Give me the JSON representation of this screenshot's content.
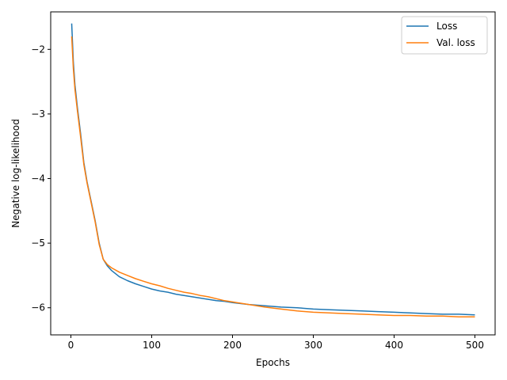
{
  "chart_data": {
    "type": "line",
    "xlabel": "Epochs",
    "ylabel": "Negative log-likelihood",
    "xlim": [
      -25,
      525
    ],
    "ylim": [
      -6.42,
      -1.42
    ],
    "xticks": [
      0,
      100,
      200,
      300,
      400,
      500
    ],
    "yticks": [
      -6,
      -5,
      -4,
      -3,
      -2
    ],
    "xtick_labels": [
      "0",
      "100",
      "200",
      "300",
      "400",
      "500"
    ],
    "ytick_labels": [
      "−6",
      "−5",
      "−4",
      "−3",
      "−2"
    ],
    "legend_position": "top-right",
    "grid": false,
    "series": [
      {
        "name": "Loss",
        "color": "#1f77b4",
        "x": [
          1,
          3,
          5,
          8,
          12,
          16,
          20,
          25,
          30,
          35,
          40,
          45,
          50,
          60,
          70,
          80,
          90,
          100,
          110,
          120,
          130,
          140,
          150,
          160,
          170,
          180,
          190,
          200,
          220,
          240,
          260,
          280,
          300,
          320,
          340,
          360,
          380,
          400,
          420,
          440,
          460,
          480,
          500
        ],
        "y": [
          -1.6,
          -2.2,
          -2.55,
          -2.9,
          -3.3,
          -3.75,
          -4.05,
          -4.35,
          -4.65,
          -5.0,
          -5.25,
          -5.35,
          -5.42,
          -5.52,
          -5.58,
          -5.63,
          -5.67,
          -5.71,
          -5.74,
          -5.76,
          -5.79,
          -5.81,
          -5.83,
          -5.85,
          -5.87,
          -5.89,
          -5.9,
          -5.92,
          -5.95,
          -5.97,
          -5.99,
          -6.0,
          -6.02,
          -6.03,
          -6.04,
          -6.05,
          -6.06,
          -6.07,
          -6.08,
          -6.09,
          -6.1,
          -6.1,
          -6.11
        ]
      },
      {
        "name": "Val. loss",
        "color": "#ff7f0e",
        "x": [
          1,
          3,
          5,
          8,
          12,
          16,
          20,
          25,
          30,
          35,
          40,
          45,
          50,
          60,
          70,
          80,
          90,
          100,
          110,
          120,
          130,
          140,
          150,
          160,
          170,
          180,
          190,
          200,
          220,
          240,
          260,
          280,
          300,
          320,
          340,
          360,
          380,
          400,
          420,
          440,
          460,
          480,
          500
        ],
        "y": [
          -1.8,
          -2.3,
          -2.62,
          -2.95,
          -3.35,
          -3.78,
          -4.07,
          -4.37,
          -4.67,
          -5.02,
          -5.25,
          -5.33,
          -5.38,
          -5.45,
          -5.5,
          -5.55,
          -5.59,
          -5.63,
          -5.66,
          -5.7,
          -5.73,
          -5.76,
          -5.78,
          -5.81,
          -5.83,
          -5.86,
          -5.89,
          -5.91,
          -5.95,
          -5.99,
          -6.02,
          -6.05,
          -6.07,
          -6.08,
          -6.09,
          -6.1,
          -6.11,
          -6.12,
          -6.12,
          -6.13,
          -6.13,
          -6.14,
          -6.14
        ]
      }
    ]
  }
}
